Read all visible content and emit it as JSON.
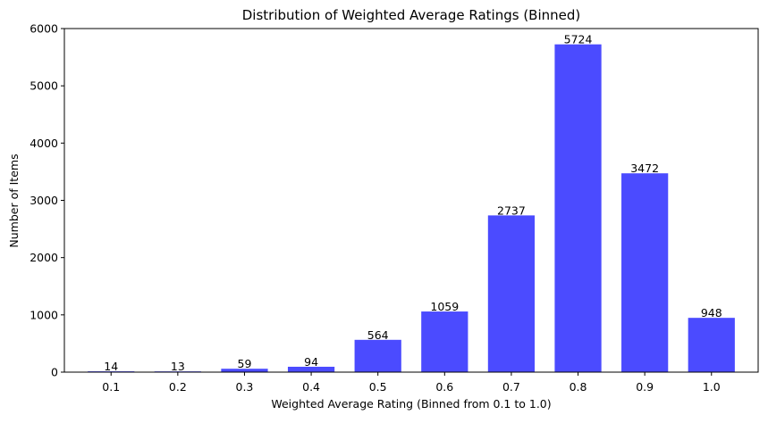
{
  "chart_data": {
    "type": "bar",
    "title": "Distribution of Weighted Average Ratings (Binned)",
    "xlabel": "Weighted Average Rating (Binned from 0.1 to 1.0)",
    "ylabel": "Number of Items",
    "categories": [
      "0.1",
      "0.2",
      "0.3",
      "0.4",
      "0.5",
      "0.6",
      "0.7",
      "0.8",
      "0.9",
      "1.0"
    ],
    "values": [
      14,
      13,
      59,
      94,
      564,
      1059,
      2737,
      5724,
      3472,
      948
    ],
    "data_labels": [
      "14",
      "13",
      "59",
      "94",
      "564",
      "1059",
      "2737",
      "5724",
      "3472",
      "948"
    ],
    "ylim": [
      0,
      6000
    ],
    "yticks": [
      0,
      1000,
      2000,
      3000,
      4000,
      5000,
      6000
    ],
    "ytick_labels": [
      "0",
      "1000",
      "2000",
      "3000",
      "4000",
      "5000",
      "6000"
    ],
    "bar_color": "#4b4bff",
    "grid": false,
    "legend": false
  }
}
